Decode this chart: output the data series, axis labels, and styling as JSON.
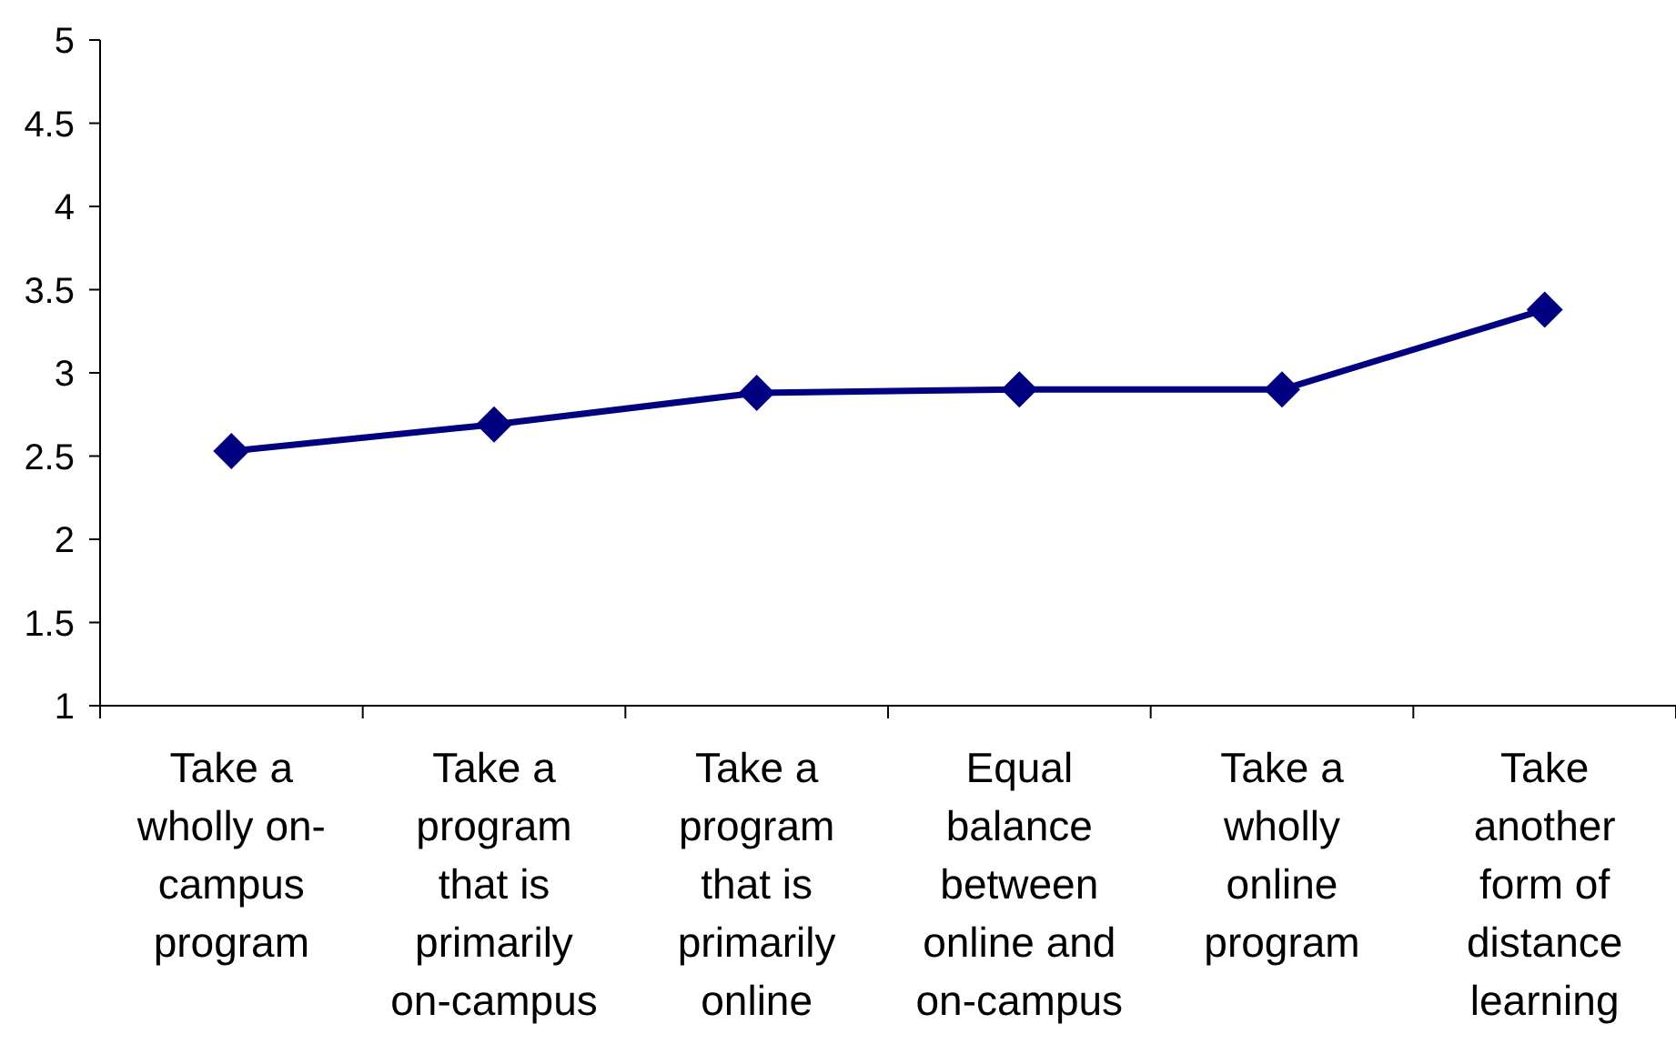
{
  "chart_data": {
    "type": "line",
    "categories": [
      "Take a wholly on-campus program",
      "Take a program that is primarily on-campus",
      "Take a program that is primarily online",
      "Equal balance between online and on-campus",
      "Take a wholly online program",
      "Take another form of distance learning"
    ],
    "values": [
      2.53,
      2.69,
      2.88,
      2.9,
      2.9,
      3.38
    ],
    "color": "#000080",
    "ylim": [
      1,
      5
    ],
    "yticks": [
      1,
      1.5,
      2,
      2.5,
      3,
      3.5,
      4,
      4.5,
      5
    ],
    "grid": false,
    "marker": "diamond",
    "line_style": "solid"
  }
}
